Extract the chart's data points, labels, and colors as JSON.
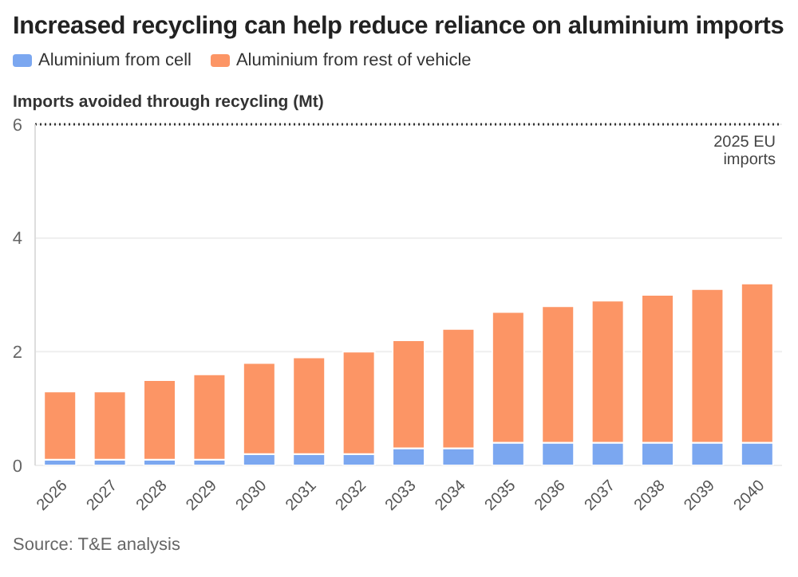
{
  "chart_data": {
    "type": "bar",
    "title": "Increased recycling can help reduce reliance on aluminium imports",
    "ylabel": "Imports avoided through recycling (Mt)",
    "categories": [
      "2026",
      "2027",
      "2028",
      "2029",
      "2030",
      "2031",
      "2032",
      "2033",
      "2034",
      "2035",
      "2036",
      "2037",
      "2038",
      "2039",
      "2040"
    ],
    "series": [
      {
        "name": "Aluminium from cell",
        "color": "#7ba7f0",
        "values": [
          0.1,
          0.1,
          0.1,
          0.1,
          0.2,
          0.2,
          0.2,
          0.3,
          0.3,
          0.4,
          0.4,
          0.4,
          0.4,
          0.4,
          0.4
        ]
      },
      {
        "name": "Aluminium from rest of vehicle",
        "color": "#fc9565",
        "values": [
          1.2,
          1.2,
          1.4,
          1.5,
          1.6,
          1.7,
          1.8,
          1.9,
          2.1,
          2.3,
          2.4,
          2.5,
          2.6,
          2.7,
          2.8
        ]
      }
    ],
    "stacked": true,
    "ylim": [
      0,
      6
    ],
    "yticks": [
      0,
      2,
      4,
      6
    ],
    "grid": "y",
    "legend": "top left",
    "ref_lines": [
      {
        "axis": "y",
        "value": 6,
        "label": "2025 EU imports",
        "color": "#333333",
        "line_style": "dotted"
      }
    ],
    "annotations": [
      "Source: T&E analysis"
    ]
  }
}
